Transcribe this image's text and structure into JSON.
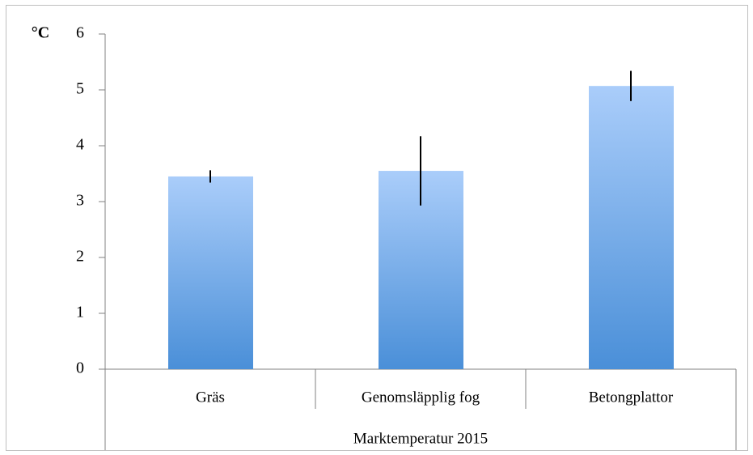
{
  "chart_data": {
    "type": "bar",
    "ylabel": "°C",
    "xlabel": "Marktemperatur 2015",
    "categories": [
      "Gräs",
      "Genomsläpplig fog",
      "Betongplattor"
    ],
    "values": [
      3.45,
      3.55,
      5.07
    ],
    "errors": [
      0.11,
      0.62,
      0.27
    ],
    "color": "#4a8fd8",
    "ylim": [
      0,
      6
    ],
    "yticks": [
      0,
      1,
      2,
      3,
      4,
      5,
      6
    ],
    "grid": false
  }
}
